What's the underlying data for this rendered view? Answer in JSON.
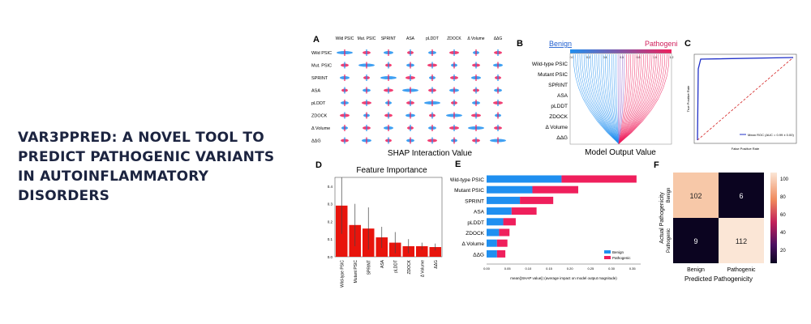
{
  "title": "VAR3PPRED: A NOVEL TOOL TO PREDICT PATHOGENIC VARIANTS IN AUTOINFLAMMATORY DISORDERS",
  "colors": {
    "benign": "#1f8ff0",
    "pathogenic": "#ef1f5c",
    "bar_red": "#e8140c",
    "title": "#1c2440"
  },
  "panels": {
    "a": {
      "label": "A",
      "features": [
        "Wild PSIC",
        "Mut. PSIC",
        "SPRINT",
        "ASA",
        "pLDDT",
        "ZDOCK",
        "Δ Volume",
        "ΔΔG"
      ],
      "columns": [
        "Wild PSIC",
        "Mut. PSIC",
        "SPRINT",
        "ASA",
        "pLDDT",
        "ZDOCK",
        "Δ Volume",
        "ΔΔG"
      ],
      "xlabel": "SHAP Interaction Value"
    },
    "b": {
      "label": "B",
      "legend_benign": "Benign",
      "legend_pathogenic": "Pathogenic",
      "features": [
        "Wild-type PSIC",
        "Mutant PSIC",
        "SPRINT",
        "ASA",
        "pLDDT",
        "ZDOCK",
        "Δ Volume",
        "ΔΔG"
      ],
      "top_ticks": [
        "0.0",
        "0.2",
        "0.4",
        "0.6",
        "0.8",
        "1.0",
        "1.2"
      ],
      "xlabel": "Model Output Value"
    },
    "c": {
      "label": "C",
      "legend": "Mean ROC (AUC = 0.99 ± 0.00)",
      "xlabel": "False Positive Rate",
      "ylabel": "True Positive Rate"
    },
    "e": {
      "label": "E",
      "xlabel": "mean(|SHAP value|) (average impact on model output magnitude)",
      "legend": [
        "Benign",
        "Pathogenic"
      ]
    },
    "f": {
      "label": "F",
      "xlabel": "Predicted Pathogenicity",
      "ylabel": "Actual Pathogenicity",
      "row_labels": [
        "Benign",
        "Pathogenic"
      ],
      "col_labels": [
        "Benign",
        "Pathogenic"
      ],
      "cells": [
        "102",
        "6",
        "9",
        "112"
      ],
      "colorbar_ticks": [
        "100",
        "80",
        "60",
        "40",
        "20"
      ]
    }
  },
  "chart_data": [
    {
      "panel": "D",
      "type": "bar",
      "title": "Feature Importance",
      "categories": [
        "Wild-type PSIC",
        "Mutant PSIC",
        "SPRINT",
        "ASA",
        "pLDDT",
        "ZDOCK",
        "Δ Volume",
        "ΔΔG"
      ],
      "values": [
        0.29,
        0.18,
        0.16,
        0.11,
        0.08,
        0.06,
        0.06,
        0.055
      ],
      "errors": [
        0.16,
        0.12,
        0.12,
        0.06,
        0.06,
        0.04,
        0.02,
        0.02
      ],
      "ylim": [
        0,
        0.45
      ],
      "yticks": [
        "0.4",
        "0.3",
        "0.2",
        "0.1",
        "0.0"
      ]
    },
    {
      "panel": "E",
      "type": "bar",
      "categories": [
        "Wild-type PSIC",
        "Mutant PSIC",
        "SPRINT",
        "ASA",
        "pLDDT",
        "ZDOCK",
        "Δ Volume",
        "ΔΔG"
      ],
      "series": [
        {
          "name": "Benign",
          "values": [
            0.18,
            0.11,
            0.08,
            0.06,
            0.04,
            0.03,
            0.025,
            0.025
          ]
        },
        {
          "name": "Pathogenic",
          "values": [
            0.18,
            0.11,
            0.08,
            0.06,
            0.03,
            0.025,
            0.025,
            0.02
          ]
        }
      ],
      "xlim": [
        0,
        0.37
      ],
      "xticks": [
        "0.00",
        "0.05",
        "0.10",
        "0.15",
        "0.20",
        "0.25",
        "0.30",
        "0.35"
      ]
    }
  ]
}
